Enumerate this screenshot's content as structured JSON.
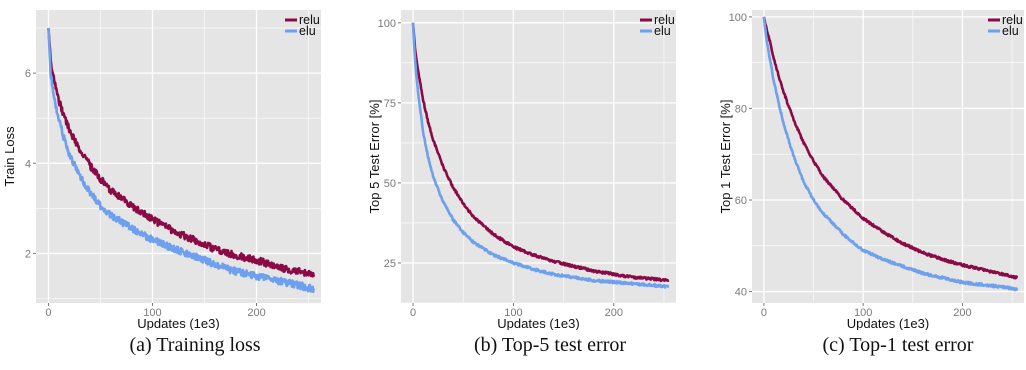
{
  "colors": {
    "relu": "#8a0a45",
    "elu": "#6ea0ee",
    "panel_bg": "#e5e5e5",
    "grid": "#ffffff"
  },
  "chart_data": [
    {
      "type": "line",
      "caption": "(a) Training loss",
      "xlabel": "Updates (1e3)",
      "ylabel": "Train Loss",
      "xlim": [
        -12,
        262
      ],
      "ylim": [
        0.9,
        7.4
      ],
      "xticks": [
        0,
        100,
        200
      ],
      "yticks": [
        2,
        4,
        6
      ],
      "grid": true,
      "legend": "top-right",
      "series": [
        {
          "name": "relu",
          "x": [
            0,
            2,
            5,
            10,
            15,
            20,
            30,
            40,
            50,
            60,
            80,
            100,
            120,
            140,
            160,
            180,
            200,
            220,
            240,
            255
          ],
          "y": [
            7.0,
            6.3,
            5.9,
            5.4,
            5.05,
            4.75,
            4.3,
            3.95,
            3.65,
            3.4,
            3.05,
            2.75,
            2.5,
            2.3,
            2.1,
            1.95,
            1.85,
            1.7,
            1.6,
            1.5
          ]
        },
        {
          "name": "elu",
          "x": [
            0,
            2,
            5,
            10,
            15,
            20,
            30,
            40,
            50,
            60,
            80,
            100,
            120,
            140,
            160,
            180,
            200,
            220,
            240,
            255
          ],
          "y": [
            7.0,
            6.0,
            5.5,
            4.95,
            4.55,
            4.2,
            3.7,
            3.35,
            3.05,
            2.85,
            2.55,
            2.3,
            2.1,
            1.95,
            1.75,
            1.6,
            1.5,
            1.4,
            1.3,
            1.2
          ]
        }
      ]
    },
    {
      "type": "line",
      "caption": "(b) Top-5 test error",
      "xlabel": "Updates (1e3)",
      "ylabel": "Top 5 Test Error [%]",
      "xlim": [
        -12,
        262
      ],
      "ylim": [
        12.5,
        104
      ],
      "xticks": [
        0,
        100,
        200
      ],
      "yticks": [
        25,
        50,
        75,
        100
      ],
      "grid": true,
      "legend": "top-right",
      "series": [
        {
          "name": "relu",
          "x": [
            0,
            2,
            5,
            10,
            15,
            20,
            30,
            40,
            50,
            60,
            80,
            100,
            120,
            140,
            160,
            180,
            200,
            220,
            240,
            255
          ],
          "y": [
            100,
            92,
            85,
            76,
            69,
            63.5,
            55,
            48.5,
            43.5,
            39.5,
            34,
            30,
            27.5,
            25.5,
            24,
            22.5,
            21.5,
            20.5,
            20,
            19.5
          ]
        },
        {
          "name": "elu",
          "x": [
            0,
            2,
            5,
            10,
            15,
            20,
            30,
            40,
            50,
            60,
            80,
            100,
            120,
            140,
            160,
            180,
            200,
            220,
            240,
            255
          ],
          "y": [
            100,
            88,
            78,
            66,
            58,
            52,
            44,
            38.5,
            34.5,
            31.5,
            27.5,
            25,
            23,
            21.5,
            20.5,
            19.5,
            19,
            18.5,
            18,
            17.5
          ]
        }
      ]
    },
    {
      "type": "line",
      "caption": "(c) Top-1 test error",
      "xlabel": "Updates (1e3)",
      "ylabel": "Top 1 Test Error [%]",
      "xlim": [
        -12,
        262
      ],
      "ylim": [
        37.5,
        101.5
      ],
      "xticks": [
        0,
        100,
        200
      ],
      "yticks": [
        40,
        60,
        80,
        100
      ],
      "grid": true,
      "legend": "top-right",
      "series": [
        {
          "name": "relu",
          "x": [
            0,
            2,
            5,
            10,
            15,
            20,
            30,
            40,
            50,
            60,
            80,
            100,
            120,
            140,
            160,
            180,
            200,
            220,
            240,
            255
          ],
          "y": [
            100,
            98,
            95.5,
            91,
            87,
            83.5,
            77.5,
            72.5,
            68.5,
            65,
            60,
            56,
            53,
            50.5,
            48.5,
            47,
            45.8,
            44.8,
            43.8,
            43
          ]
        },
        {
          "name": "elu",
          "x": [
            0,
            2,
            5,
            10,
            15,
            20,
            30,
            40,
            50,
            60,
            80,
            100,
            120,
            140,
            160,
            180,
            200,
            220,
            240,
            255
          ],
          "y": [
            100,
            96,
            92,
            86,
            81,
            76.5,
            69.5,
            64,
            60,
            57,
            52.5,
            49,
            47,
            45.5,
            44,
            43,
            42,
            41.5,
            41,
            40.5
          ]
        }
      ]
    }
  ]
}
